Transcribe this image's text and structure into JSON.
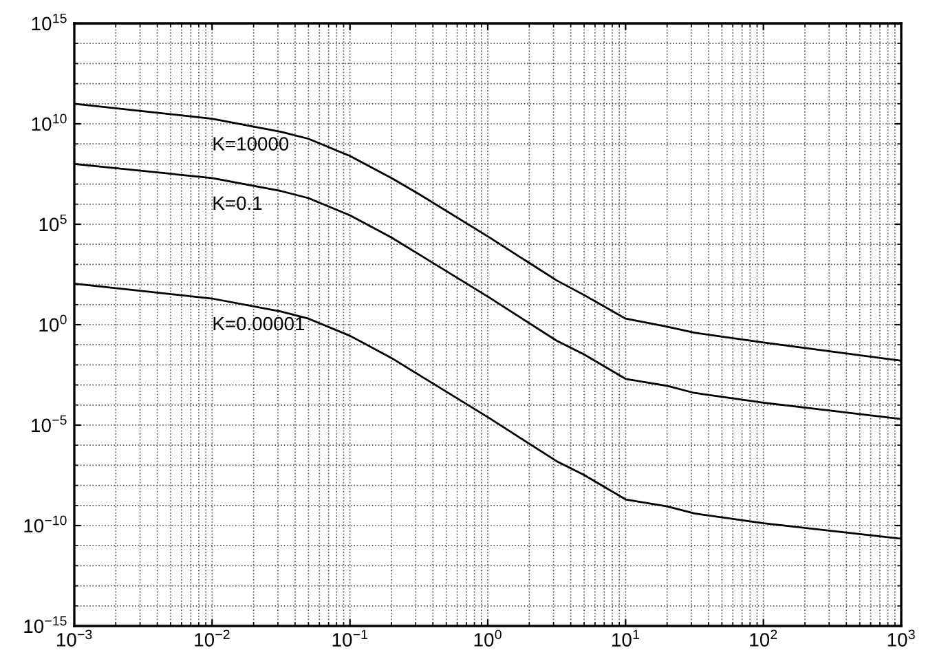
{
  "chart_data": {
    "type": "line",
    "log": "xy",
    "grid": true,
    "marker": "none",
    "line_style": "solid",
    "x": [
      0.001,
      0.01,
      0.0316,
      0.05,
      0.1,
      0.2,
      0.316,
      1,
      3.16,
      5,
      10,
      20,
      31.6,
      100,
      1000
    ],
    "series": [
      {
        "name": "K=10000",
        "color": "#000000",
        "values": [
          100000000000.0,
          18000000000.0,
          4000000000.0,
          1800000000.0,
          250000000.0,
          20000000.0,
          3200000.0,
          25000.0,
          160,
          30,
          2,
          0.8,
          0.4,
          0.13,
          0.016
        ]
      },
      {
        "name": "K=0.1",
        "color": "#000000",
        "values": [
          100000000.0,
          20000000.0,
          4500000.0,
          2000000.0,
          280000.0,
          22000.0,
          3200.0,
          25,
          0.16,
          0.033,
          0.002,
          0.0009,
          0.0004,
          0.00013,
          2e-05
        ]
      },
      {
        "name": "K=0.00001",
        "color": "#000000",
        "values": [
          110,
          20,
          4.5,
          2,
          0.28,
          0.022,
          0.0032,
          2.5e-05,
          1.6e-07,
          3.3e-08,
          2e-09,
          9e-10,
          4e-10,
          1.3e-10,
          2.2e-11
        ]
      }
    ],
    "xlim": [
      0.001,
      1000
    ],
    "ylim": [
      1e-15,
      1000000000000000.0
    ],
    "xticks": [
      {
        "value": 0.001,
        "label": "10$^{−3}$"
      },
      {
        "value": 0.01,
        "label": "10$^{−2}$"
      },
      {
        "value": 0.1,
        "label": "10$^{−1}$"
      },
      {
        "value": 1,
        "label": "10$^{0}$"
      },
      {
        "value": 10,
        "label": "10$^{1}$"
      },
      {
        "value": 100,
        "label": "10$^{2}$"
      },
      {
        "value": 1000,
        "label": "10$^{3}$"
      }
    ],
    "yticks": [
      {
        "value": 1e-15,
        "label": "10$^{−15}$"
      },
      {
        "value": 1e-10,
        "label": "10$^{−10}$"
      },
      {
        "value": 1e-05,
        "label": "10$^{−5}$"
      },
      {
        "value": 1,
        "label": "10$^{0}$"
      },
      {
        "value": 100000.0,
        "label": "10$^{5}$"
      },
      {
        "value": 10000000000.0,
        "label": "10$^{10}$"
      },
      {
        "value": 1000000000000000.0,
        "label": "10$^{15}$"
      }
    ]
  }
}
